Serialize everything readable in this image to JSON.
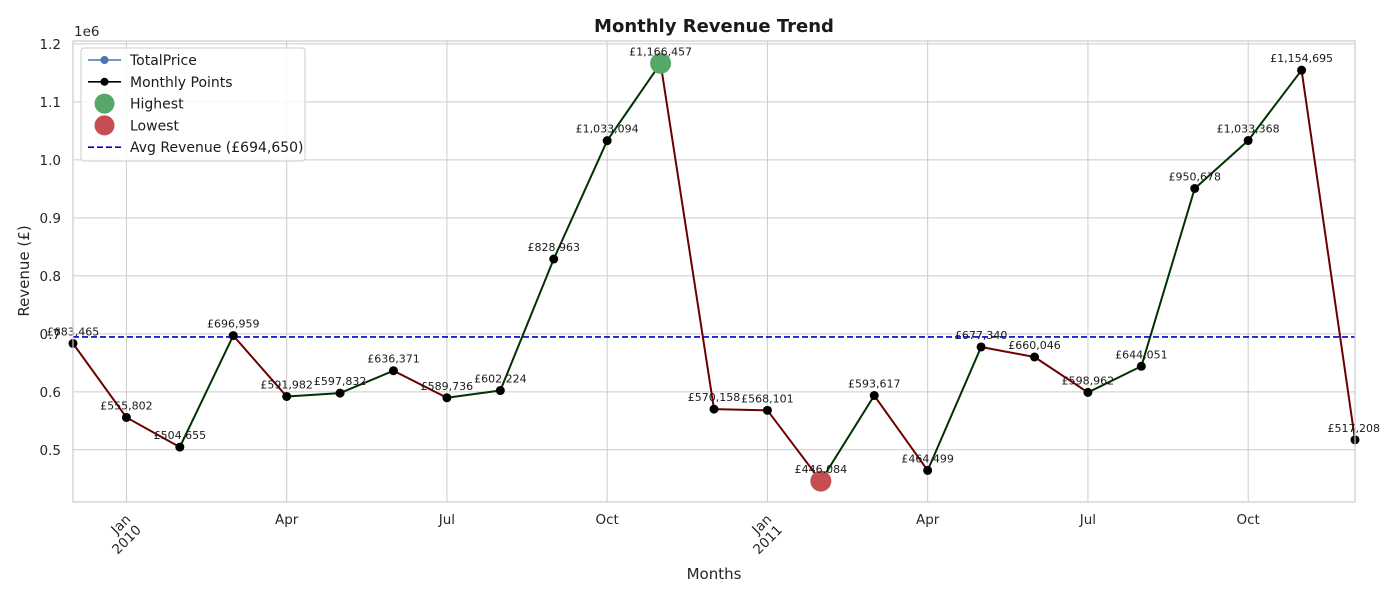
{
  "chart_data": {
    "type": "line",
    "title": "Monthly Revenue Trend",
    "xlabel": "Months",
    "ylabel": "Revenue (£)",
    "y_scale_label": "1e6",
    "ylim": [
      0.41,
      1.205
    ],
    "yticks": [
      0.5,
      0.6,
      0.7,
      0.8,
      0.9,
      1.0,
      1.1,
      1.2
    ],
    "ytick_labels": [
      "0.5",
      "0.6",
      "0.7",
      "0.8",
      "0.9",
      "1.0",
      "1.1",
      "1.2"
    ],
    "x": [
      "2009-12",
      "2010-01",
      "2010-02",
      "2010-03",
      "2010-04",
      "2010-05",
      "2010-06",
      "2010-07",
      "2010-08",
      "2010-09",
      "2010-10",
      "2010-11",
      "2010-12",
      "2011-01",
      "2011-02",
      "2011-03",
      "2011-04",
      "2011-05",
      "2011-06",
      "2011-07",
      "2011-08",
      "2011-09",
      "2011-10",
      "2011-11",
      "2011-12"
    ],
    "values": [
      683465,
      555802,
      504655,
      696959,
      591982,
      597832,
      636371,
      589736,
      602224,
      828963,
      1033094,
      1166457,
      570158,
      568101,
      446084,
      593617,
      464499,
      677340,
      660046,
      598962,
      644051,
      950678,
      1033368,
      1154695,
      517208
    ],
    "data_labels": [
      "£683,465",
      "£555,802",
      "£504,655",
      "£696,959",
      "£591,982",
      "£597,832",
      "£636,371",
      "£589,736",
      "£602,224",
      "£828,963",
      "£1,033,094",
      "£1,166,457",
      "£570,158",
      "£568,101",
      "£446,084",
      "£593,617",
      "£464,499",
      "£677,340",
      "£660,046",
      "£598,962",
      "£644,051",
      "£950,678",
      "£1,033,368",
      "£1,154,695",
      "£517,208"
    ],
    "xticks": [
      {
        "index": 1,
        "label": "Jan",
        "sublabel": "2010",
        "rotated": true
      },
      {
        "index": 4,
        "label": "Apr",
        "rotated": false
      },
      {
        "index": 7,
        "label": "Jul",
        "rotated": false
      },
      {
        "index": 10,
        "label": "Oct",
        "rotated": false
      },
      {
        "index": 13,
        "label": "Jan",
        "sublabel": "2011",
        "rotated": true
      },
      {
        "index": 16,
        "label": "Apr",
        "rotated": false
      },
      {
        "index": 19,
        "label": "Jul",
        "rotated": false
      },
      {
        "index": 22,
        "label": "Oct",
        "rotated": false
      }
    ],
    "avg_revenue": 694650,
    "highest_index": 11,
    "lowest_index": 14,
    "colors": {
      "increase": "#003300",
      "decrease": "#6b0000",
      "points": "#000000",
      "highest": "#55a868",
      "lowest": "#c44e52",
      "average": "#0000cc",
      "series": "#4c72b0"
    },
    "legend": {
      "position": "upper-left",
      "entries": [
        {
          "label": "TotalPrice",
          "style": "line-marker",
          "color": "#4c72b0"
        },
        {
          "label": "Monthly Points",
          "style": "line-marker",
          "color": "#000000"
        },
        {
          "label": " Highest",
          "style": "big-marker",
          "color": "#55a868"
        },
        {
          "label": " Lowest",
          "style": "big-marker",
          "color": "#c44e52"
        },
        {
          "label": "Avg Revenue (£694,650)",
          "style": "dashed",
          "color": "#0000cc"
        }
      ]
    },
    "grid": true
  }
}
